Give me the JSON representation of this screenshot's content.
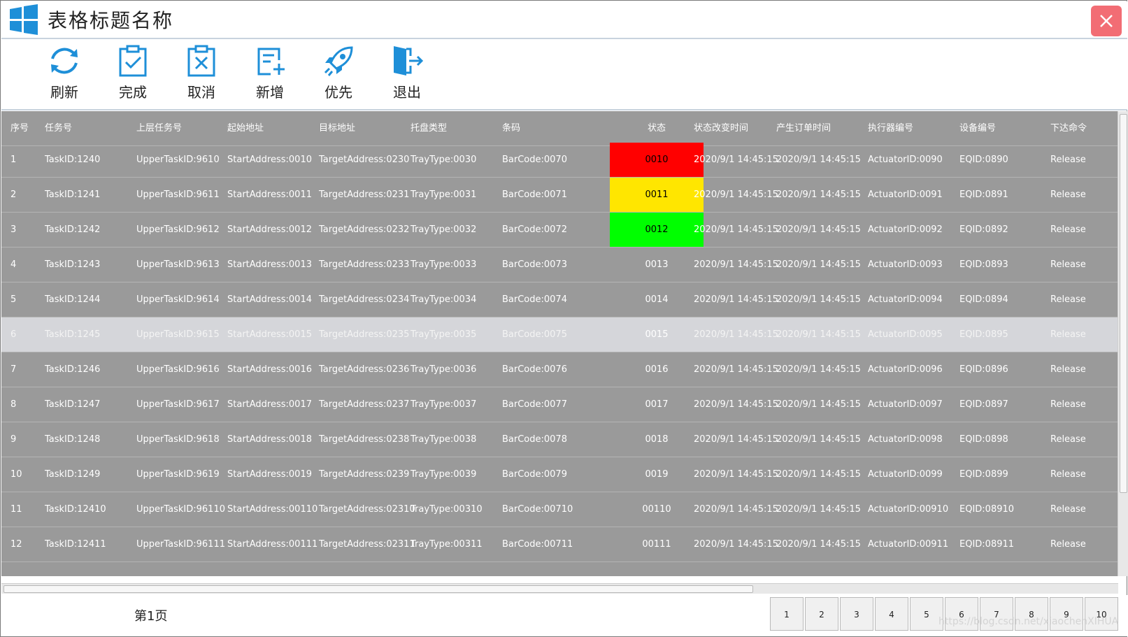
{
  "window": {
    "title": "表格标题名称"
  },
  "toolbar": {
    "refresh": "刷新",
    "complete": "完成",
    "cancel": "取消",
    "add": "新增",
    "priority": "优先",
    "exit": "退出"
  },
  "table": {
    "columns": [
      "序号",
      "任务号",
      "上层任务号",
      "起始地址",
      "目标地址",
      "托盘类型",
      "条码",
      "状态",
      "状态改变时间",
      "产生订单时间",
      "执行器编号",
      "设备编号",
      "下达命令"
    ],
    "rows": [
      [
        "1",
        "TaskID:1240",
        "UpperTaskID:9610",
        "StartAddress:0010",
        "TargetAddress:0230",
        "TrayType:0030",
        "BarCode:0070",
        "0010",
        "2020/9/1 14:45:15",
        "2020/9/1 14:45:15",
        "ActuatorID:0090",
        "EQID:0890",
        "Release"
      ],
      [
        "2",
        "TaskID:1241",
        "UpperTaskID:9611",
        "StartAddress:0011",
        "TargetAddress:0231",
        "TrayType:0031",
        "BarCode:0071",
        "0011",
        "2020/9/1 14:45:15",
        "2020/9/1 14:45:15",
        "ActuatorID:0091",
        "EQID:0891",
        "Release"
      ],
      [
        "3",
        "TaskID:1242",
        "UpperTaskID:9612",
        "StartAddress:0012",
        "TargetAddress:0232",
        "TrayType:0032",
        "BarCode:0072",
        "0012",
        "2020/9/1 14:45:15",
        "2020/9/1 14:45:15",
        "ActuatorID:0092",
        "EQID:0892",
        "Release"
      ],
      [
        "4",
        "TaskID:1243",
        "UpperTaskID:9613",
        "StartAddress:0013",
        "TargetAddress:0233",
        "TrayType:0033",
        "BarCode:0073",
        "0013",
        "2020/9/1 14:45:15",
        "2020/9/1 14:45:15",
        "ActuatorID:0093",
        "EQID:0893",
        "Release"
      ],
      [
        "5",
        "TaskID:1244",
        "UpperTaskID:9614",
        "StartAddress:0014",
        "TargetAddress:0234",
        "TrayType:0034",
        "BarCode:0074",
        "0014",
        "2020/9/1 14:45:15",
        "2020/9/1 14:45:15",
        "ActuatorID:0094",
        "EQID:0894",
        "Release"
      ],
      [
        "6",
        "TaskID:1245",
        "UpperTaskID:9615",
        "StartAddress:0015",
        "TargetAddress:0235",
        "TrayType:0035",
        "BarCode:0075",
        "0015",
        "2020/9/1 14:45:15",
        "2020/9/1 14:45:15",
        "ActuatorID:0095",
        "EQID:0895",
        "Release"
      ],
      [
        "7",
        "TaskID:1246",
        "UpperTaskID:9616",
        "StartAddress:0016",
        "TargetAddress:0236",
        "TrayType:0036",
        "BarCode:0076",
        "0016",
        "2020/9/1 14:45:15",
        "2020/9/1 14:45:15",
        "ActuatorID:0096",
        "EQID:0896",
        "Release"
      ],
      [
        "8",
        "TaskID:1247",
        "UpperTaskID:9617",
        "StartAddress:0017",
        "TargetAddress:0237",
        "TrayType:0037",
        "BarCode:0077",
        "0017",
        "2020/9/1 14:45:15",
        "2020/9/1 14:45:15",
        "ActuatorID:0097",
        "EQID:0897",
        "Release"
      ],
      [
        "9",
        "TaskID:1248",
        "UpperTaskID:9618",
        "StartAddress:0018",
        "TargetAddress:0238",
        "TrayType:0038",
        "BarCode:0078",
        "0018",
        "2020/9/1 14:45:15",
        "2020/9/1 14:45:15",
        "ActuatorID:0098",
        "EQID:0898",
        "Release"
      ],
      [
        "10",
        "TaskID:1249",
        "UpperTaskID:9619",
        "StartAddress:0019",
        "TargetAddress:0239",
        "TrayType:0039",
        "BarCode:0079",
        "0019",
        "2020/9/1 14:45:15",
        "2020/9/1 14:45:15",
        "ActuatorID:0099",
        "EQID:0899",
        "Release"
      ],
      [
        "11",
        "TaskID:12410",
        "UpperTaskID:96110",
        "StartAddress:00110",
        "TargetAddress:02310",
        "TrayType:00310",
        "BarCode:00710",
        "00110",
        "2020/9/1 14:45:15",
        "2020/9/1 14:45:15",
        "ActuatorID:00910",
        "EQID:08910",
        "Release"
      ],
      [
        "12",
        "TaskID:12411",
        "UpperTaskID:96111",
        "StartAddress:00111",
        "TargetAddress:02311",
        "TrayType:00311",
        "BarCode:00711",
        "00111",
        "2020/9/1 14:45:15",
        "2020/9/1 14:45:15",
        "ActuatorID:00911",
        "EQID:08911",
        "Release"
      ]
    ],
    "selected_row": 6,
    "status_colors": {
      "0010": "#ff0000",
      "0011": "#ffe600",
      "0012": "#00ff00"
    },
    "grid_color": "#9a9a9a"
  },
  "footer": {
    "page_label": "第1页",
    "pages": [
      "1",
      "2",
      "3",
      "4",
      "5",
      "6",
      "7",
      "8",
      "9",
      "10"
    ],
    "watermark": "https://blog.csdn.net/xiaochenXIHUA"
  },
  "colors": {
    "accent": "#1e8fd8",
    "close": "#f26d74"
  }
}
